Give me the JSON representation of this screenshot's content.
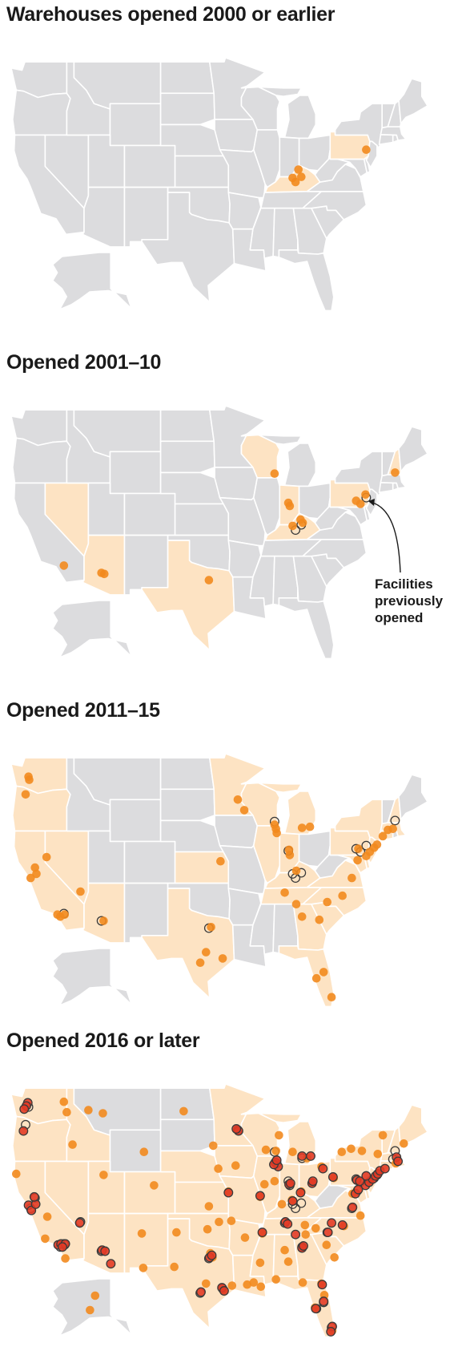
{
  "colors": {
    "state_default": "#dcdcde",
    "state_highlight": "#fde3c3",
    "border": "#ffffff",
    "dot_new": "#f28a1e",
    "dot_previous_outline": "#3a3a3a",
    "dot_recent": "#e23b26"
  },
  "panels": [
    {
      "title": "Warehouses opened 2000 or earlier",
      "highlighted_states": [
        "KY",
        "PA"
      ],
      "dots_previous": [],
      "dots_new": [
        [
          -84.5,
          38.0
        ],
        [
          -84.9,
          38.7
        ],
        [
          -85.7,
          37.9
        ],
        [
          -85.3,
          37.5
        ],
        [
          -75.5,
          40.6
        ]
      ],
      "dots_recent": []
    },
    {
      "title": "Opened 2001–10",
      "highlighted_states": [
        "NV",
        "AZ",
        "TX",
        "WI",
        "IN",
        "KY",
        "PA",
        "NH"
      ],
      "dots_previous": [
        [
          -84.5,
          38.0
        ],
        [
          -85.3,
          37.5
        ],
        [
          -75.5,
          40.6
        ]
      ],
      "dots_new": [
        [
          -86.3,
          40.1
        ],
        [
          -86.1,
          39.8
        ],
        [
          -84.6,
          38.5
        ],
        [
          -85.7,
          37.9
        ],
        [
          -84.3,
          38.2
        ],
        [
          -88.2,
          42.9
        ],
        [
          -76.9,
          40.3
        ],
        [
          -76.3,
          40.0
        ],
        [
          -75.6,
          40.9
        ],
        [
          -71.5,
          43.0
        ],
        [
          -117.4,
          34.1
        ],
        [
          -112.2,
          33.4
        ],
        [
          -111.8,
          33.3
        ],
        [
          -97.3,
          32.7
        ]
      ],
      "dots_recent": [],
      "annotation": {
        "lines": [
          "Facilities",
          "previously",
          "opened"
        ]
      }
    },
    {
      "title": "Opened 2011–15",
      "highlighted_states": [
        "WA",
        "OR",
        "CA",
        "NV",
        "AZ",
        "TX",
        "KS",
        "MN",
        "WI",
        "IL",
        "IN",
        "MI",
        "KY",
        "TN",
        "SC",
        "NC",
        "VA",
        "MD",
        "DE",
        "NJ",
        "PA",
        "NY",
        "CT",
        "MA",
        "NH",
        "FL",
        "GA"
      ],
      "dots_previous": [
        [
          -84.5,
          38.0
        ],
        [
          -85.3,
          37.5
        ],
        [
          -75.5,
          40.6
        ],
        [
          -86.3,
          40.1
        ],
        [
          -85.7,
          37.9
        ],
        [
          -88.2,
          42.9
        ],
        [
          -76.9,
          40.3
        ],
        [
          -76.3,
          40.0
        ],
        [
          -71.5,
          43.0
        ],
        [
          -117.4,
          34.1
        ],
        [
          -112.2,
          33.4
        ],
        [
          -97.3,
          32.7
        ]
      ],
      "dots_new": [
        [
          -122.3,
          47.2
        ],
        [
          -122.2,
          46.9
        ],
        [
          -122.7,
          45.5
        ],
        [
          -121.4,
          38.5
        ],
        [
          -121.2,
          37.9
        ],
        [
          -122.0,
          37.5
        ],
        [
          -117.3,
          34.0
        ],
        [
          -117.9,
          33.8
        ],
        [
          -118.3,
          34.0
        ],
        [
          -119.8,
          39.5
        ],
        [
          -115.1,
          36.2
        ],
        [
          -111.9,
          33.4
        ],
        [
          -97.0,
          32.8
        ],
        [
          -97.7,
          30.4
        ],
        [
          -95.4,
          29.8
        ],
        [
          -98.5,
          29.4
        ],
        [
          -93.3,
          45.0
        ],
        [
          -92.4,
          44.0
        ],
        [
          -88.0,
          42.2
        ],
        [
          -87.9,
          41.8
        ],
        [
          -88.2,
          42.6
        ],
        [
          -86.1,
          39.7
        ],
        [
          -86.2,
          40.2
        ],
        [
          -85.2,
          38.2
        ],
        [
          -84.4,
          42.3
        ],
        [
          -83.3,
          42.4
        ],
        [
          -86.8,
          36.1
        ],
        [
          -85.2,
          35.0
        ],
        [
          -84.4,
          33.8
        ],
        [
          -80.9,
          35.2
        ],
        [
          -78.8,
          35.8
        ],
        [
          -77.5,
          37.5
        ],
        [
          -76.7,
          39.2
        ],
        [
          -75.5,
          39.6
        ],
        [
          -74.4,
          40.4
        ],
        [
          -74.0,
          40.7
        ],
        [
          -73.2,
          41.5
        ],
        [
          -71.8,
          42.2
        ],
        [
          -76.6,
          40.3
        ],
        [
          -75.0,
          40.0
        ],
        [
          -81.4,
          28.5
        ],
        [
          -82.4,
          27.9
        ],
        [
          -80.3,
          26.1
        ],
        [
          -95.7,
          39.1
        ],
        [
          -72.5,
          42.1
        ],
        [
          -82.0,
          33.5
        ]
      ],
      "dots_recent": []
    },
    {
      "title": "Opened 2016 or later",
      "highlighted_states": [
        "WA",
        "OR",
        "CA",
        "NV",
        "ID",
        "UT",
        "AZ",
        "CO",
        "NM",
        "TX",
        "OK",
        "KS",
        "NE",
        "MN",
        "IA",
        "MO",
        "AR",
        "LA",
        "WI",
        "IL",
        "IN",
        "MI",
        "OH",
        "KY",
        "TN",
        "MS",
        "AL",
        "GA",
        "FL",
        "SC",
        "NC",
        "VA",
        "MD",
        "DE",
        "NJ",
        "PA",
        "NY",
        "CT",
        "RI",
        "MA",
        "VT",
        "NH",
        "ME"
      ],
      "dots_previous": [
        [
          -84.5,
          38.0
        ],
        [
          -85.3,
          37.5
        ],
        [
          -75.5,
          40.6
        ],
        [
          -86.3,
          40.1
        ],
        [
          -85.7,
          37.9
        ],
        [
          -88.2,
          42.9
        ],
        [
          -76.9,
          40.3
        ],
        [
          -76.3,
          40.0
        ],
        [
          -71.5,
          43.0
        ],
        [
          -117.4,
          34.1
        ],
        [
          -112.2,
          33.4
        ],
        [
          -97.3,
          32.7
        ],
        [
          -122.3,
          47.2
        ],
        [
          -122.7,
          45.5
        ],
        [
          -121.4,
          38.5
        ],
        [
          -117.3,
          34.0
        ],
        [
          -117.9,
          33.8
        ],
        [
          -115.1,
          36.2
        ],
        [
          -95.4,
          29.8
        ],
        [
          -98.5,
          29.4
        ],
        [
          -93.3,
          45.0
        ],
        [
          -87.9,
          41.8
        ],
        [
          -86.1,
          39.7
        ],
        [
          -84.4,
          42.3
        ],
        [
          -86.8,
          36.1
        ],
        [
          -84.4,
          33.8
        ],
        [
          -80.9,
          35.2
        ],
        [
          -77.5,
          37.5
        ],
        [
          -76.7,
          39.2
        ],
        [
          -74.4,
          40.4
        ],
        [
          -74.0,
          40.7
        ],
        [
          -71.8,
          42.2
        ],
        [
          -81.4,
          28.5
        ],
        [
          -82.4,
          27.9
        ],
        [
          -80.3,
          26.1
        ],
        [
          -122.0,
          37.5
        ]
      ],
      "dots_new": [
        [
          -116.2,
          43.6
        ],
        [
          -111.9,
          40.7
        ],
        [
          -104.9,
          39.7
        ],
        [
          -106.6,
          35.1
        ],
        [
          -97.5,
          35.5
        ],
        [
          -96.0,
          41.3
        ],
        [
          -93.6,
          41.6
        ],
        [
          -94.6,
          39.1
        ],
        [
          -90.2,
          38.6
        ],
        [
          -92.3,
          34.7
        ],
        [
          -90.1,
          30.0
        ],
        [
          -91.1,
          30.4
        ],
        [
          -90.2,
          32.3
        ],
        [
          -86.8,
          33.5
        ],
        [
          -86.3,
          32.4
        ],
        [
          -83.0,
          40.0
        ],
        [
          -84.5,
          39.1
        ],
        [
          -81.7,
          41.5
        ],
        [
          -80.0,
          40.4
        ],
        [
          -71.4,
          41.8
        ],
        [
          -70.3,
          43.7
        ],
        [
          -73.2,
          44.5
        ],
        [
          -117.2,
          32.7
        ],
        [
          -119.7,
          36.7
        ],
        [
          -120.0,
          34.6
        ],
        [
          -124.0,
          40.8
        ],
        [
          -112.0,
          46.6
        ],
        [
          -106.3,
          42.9
        ],
        [
          -100.8,
          46.8
        ],
        [
          -96.7,
          43.5
        ],
        [
          -101.8,
          35.2
        ],
        [
          -106.4,
          31.8
        ],
        [
          -102.1,
          31.9
        ],
        [
          -97.3,
          37.7
        ],
        [
          -88.0,
          30.7
        ],
        [
          -84.3,
          30.4
        ],
        [
          -81.7,
          30.3
        ],
        [
          -82.6,
          28.0
        ],
        [
          -81.3,
          29.2
        ],
        [
          -80.2,
          25.8
        ],
        [
          -149.9,
          61.2
        ],
        [
          -147.7,
          64.8
        ],
        [
          -78.6,
          35.8
        ],
        [
          -79.9,
          32.8
        ],
        [
          -81.0,
          34.0
        ],
        [
          -76.3,
          36.8
        ],
        [
          -77.4,
          38.9
        ],
        [
          -75.2,
          40.0
        ],
        [
          -73.9,
          42.7
        ],
        [
          -78.9,
          42.9
        ],
        [
          -77.6,
          43.2
        ],
        [
          -76.1,
          43.0
        ],
        [
          -85.7,
          42.9
        ],
        [
          -83.7,
          42.3
        ],
        [
          -87.6,
          44.5
        ],
        [
          -89.4,
          43.1
        ],
        [
          -88.0,
          43.0
        ],
        [
          -89.6,
          39.8
        ],
        [
          -88.2,
          40.1
        ],
        [
          -87.2,
          37.9
        ],
        [
          -85.8,
          38.3
        ],
        [
          -84.0,
          35.9
        ],
        [
          -83.9,
          35.0
        ],
        [
          -82.5,
          35.6
        ],
        [
          -89.9,
          35.1
        ],
        [
          -94.2,
          36.3
        ],
        [
          -95.9,
          36.2
        ],
        [
          -97.1,
          33.2
        ],
        [
          -96.8,
          32.8
        ],
        [
          -97.7,
          30.3
        ],
        [
          -95.3,
          29.7
        ],
        [
          -94.1,
          30.1
        ],
        [
          -92.0,
          30.2
        ],
        [
          -117.0,
          46.7
        ],
        [
          -117.4,
          47.7
        ],
        [
          -114.0,
          46.9
        ]
      ],
      "dots_recent": [
        [
          -122.4,
          47.6
        ],
        [
          -122.6,
          47.3
        ],
        [
          -122.9,
          47.0
        ],
        [
          -123.0,
          44.9
        ],
        [
          -122.3,
          37.8
        ],
        [
          -121.9,
          37.3
        ],
        [
          -121.3,
          37.9
        ],
        [
          -121.5,
          38.6
        ],
        [
          -118.2,
          34.0
        ],
        [
          -117.8,
          34.1
        ],
        [
          -117.2,
          34.1
        ],
        [
          -117.6,
          33.8
        ],
        [
          -115.2,
          36.1
        ],
        [
          -112.1,
          33.5
        ],
        [
          -111.7,
          33.4
        ],
        [
          -110.9,
          32.2
        ],
        [
          -97.2,
          32.8
        ],
        [
          -96.9,
          33.0
        ],
        [
          -98.4,
          29.5
        ],
        [
          -95.5,
          29.9
        ],
        [
          -95.2,
          29.6
        ],
        [
          -93.2,
          44.9
        ],
        [
          -93.5,
          45.1
        ],
        [
          -88.1,
          41.9
        ],
        [
          -87.7,
          41.5
        ],
        [
          -88.3,
          41.7
        ],
        [
          -87.9,
          42.1
        ],
        [
          -86.2,
          39.8
        ],
        [
          -86.0,
          39.9
        ],
        [
          -85.7,
          38.2
        ],
        [
          -84.6,
          39.0
        ],
        [
          -84.4,
          42.5
        ],
        [
          -83.2,
          42.5
        ],
        [
          -83.0,
          39.9
        ],
        [
          -82.9,
          40.1
        ],
        [
          -81.5,
          41.3
        ],
        [
          -80.1,
          40.5
        ],
        [
          -86.7,
          36.2
        ],
        [
          -86.4,
          36.0
        ],
        [
          -85.3,
          35.0
        ],
        [
          -84.4,
          33.7
        ],
        [
          -84.2,
          33.9
        ],
        [
          -81.6,
          30.2
        ],
        [
          -81.4,
          28.6
        ],
        [
          -82.5,
          27.9
        ],
        [
          -80.8,
          35.2
        ],
        [
          -80.3,
          36.1
        ],
        [
          -78.8,
          35.9
        ],
        [
          -77.4,
          37.6
        ],
        [
          -77.0,
          38.9
        ],
        [
          -76.6,
          39.3
        ],
        [
          -75.6,
          39.7
        ],
        [
          -75.1,
          40.0
        ],
        [
          -74.6,
          40.3
        ],
        [
          -74.2,
          40.6
        ],
        [
          -73.9,
          40.8
        ],
        [
          -73.6,
          41.1
        ],
        [
          -72.9,
          41.3
        ],
        [
          -71.3,
          42.4
        ],
        [
          -71.1,
          42.0
        ],
        [
          -76.8,
          40.2
        ],
        [
          -76.4,
          40.1
        ],
        [
          -75.5,
          40.6
        ],
        [
          -80.2,
          26.2
        ],
        [
          -80.4,
          25.7
        ],
        [
          -90.2,
          38.7
        ],
        [
          -94.6,
          39.0
        ],
        [
          -89.9,
          35.2
        ]
      ]
    }
  ]
}
